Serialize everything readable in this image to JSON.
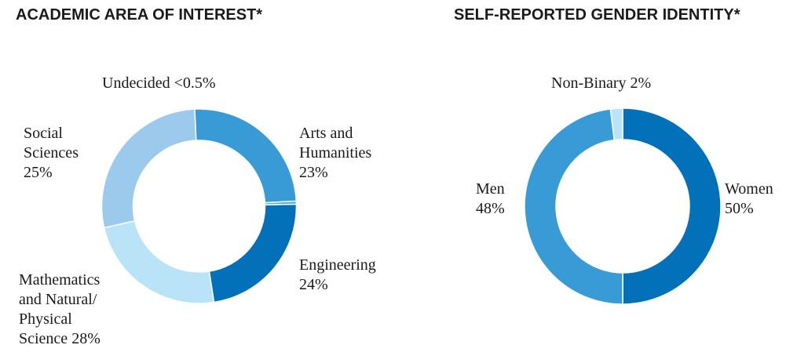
{
  "chart_data": [
    {
      "type": "pie",
      "variant": "donut",
      "title": "ACADEMIC AREA OF INTEREST*",
      "slices": [
        {
          "label": "Arts and\nHumanities\n23%",
          "value": 23,
          "color": "#0271b9"
        },
        {
          "label": "Engineering\n24%",
          "value": 24,
          "color": "#b9e3f7"
        },
        {
          "label": "Mathematics\nand Natural/\nPhysical\nScience 28%",
          "value": 28,
          "color": "#9ccaed"
        },
        {
          "label": "Social\nSciences\n25%",
          "value": 25,
          "color": "#389bd6"
        },
        {
          "label": "Undecided <0.5%",
          "value": 0.5,
          "color": "#46aee3"
        }
      ]
    },
    {
      "type": "pie",
      "variant": "donut",
      "title": "SELF-REPORTED GENDER IDENTITY*",
      "slices": [
        {
          "label": "Women\n50%",
          "value": 50,
          "color": "#0271b9"
        },
        {
          "label": "Men\n48%",
          "value": 48,
          "color": "#389bd6"
        },
        {
          "label": "Non-Binary 2%",
          "value": 2,
          "color": "#b9e3f7"
        }
      ]
    }
  ]
}
